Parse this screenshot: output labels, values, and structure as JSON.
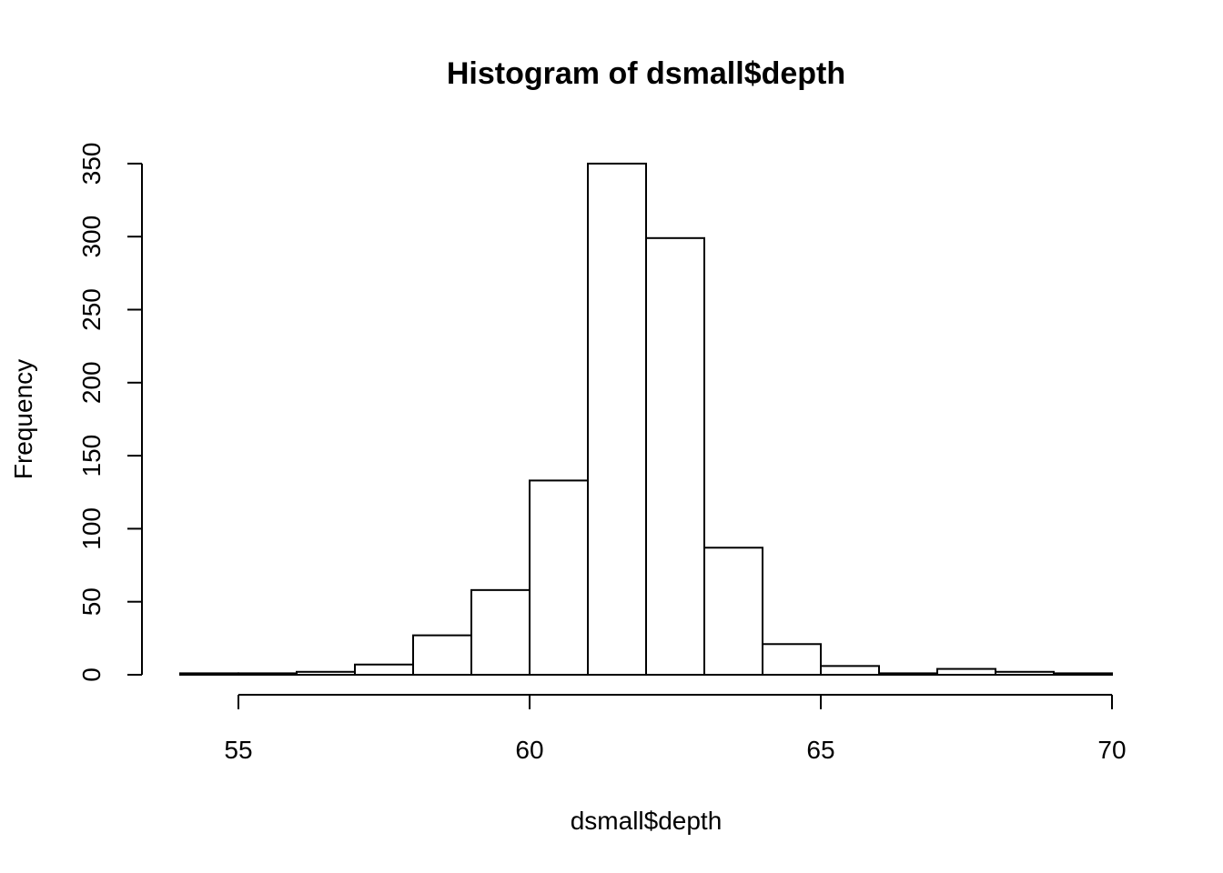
{
  "chart_data": {
    "type": "bar",
    "title": "Histogram of dsmall$depth",
    "xlabel": "dsmall$depth",
    "ylabel": "Frequency",
    "bins": [
      {
        "from": 54,
        "to": 55,
        "count": 1
      },
      {
        "from": 55,
        "to": 56,
        "count": 1
      },
      {
        "from": 56,
        "to": 57,
        "count": 2
      },
      {
        "from": 57,
        "to": 58,
        "count": 7
      },
      {
        "from": 58,
        "to": 59,
        "count": 27
      },
      {
        "from": 59,
        "to": 60,
        "count": 58
      },
      {
        "from": 60,
        "to": 61,
        "count": 133
      },
      {
        "from": 61,
        "to": 62,
        "count": 350
      },
      {
        "from": 62,
        "to": 63,
        "count": 299
      },
      {
        "from": 63,
        "to": 64,
        "count": 87
      },
      {
        "from": 64,
        "to": 65,
        "count": 21
      },
      {
        "from": 65,
        "to": 66,
        "count": 6
      },
      {
        "from": 66,
        "to": 67,
        "count": 1
      },
      {
        "from": 67,
        "to": 68,
        "count": 4
      },
      {
        "from": 68,
        "to": 69,
        "count": 2
      },
      {
        "from": 69,
        "to": 70,
        "count": 1
      }
    ],
    "xticks": [
      55,
      60,
      65,
      70
    ],
    "yticks": [
      0,
      50,
      100,
      150,
      200,
      250,
      300,
      350
    ],
    "xlim": [
      54,
      70
    ],
    "ylim": [
      0,
      350
    ],
    "grid": false
  }
}
